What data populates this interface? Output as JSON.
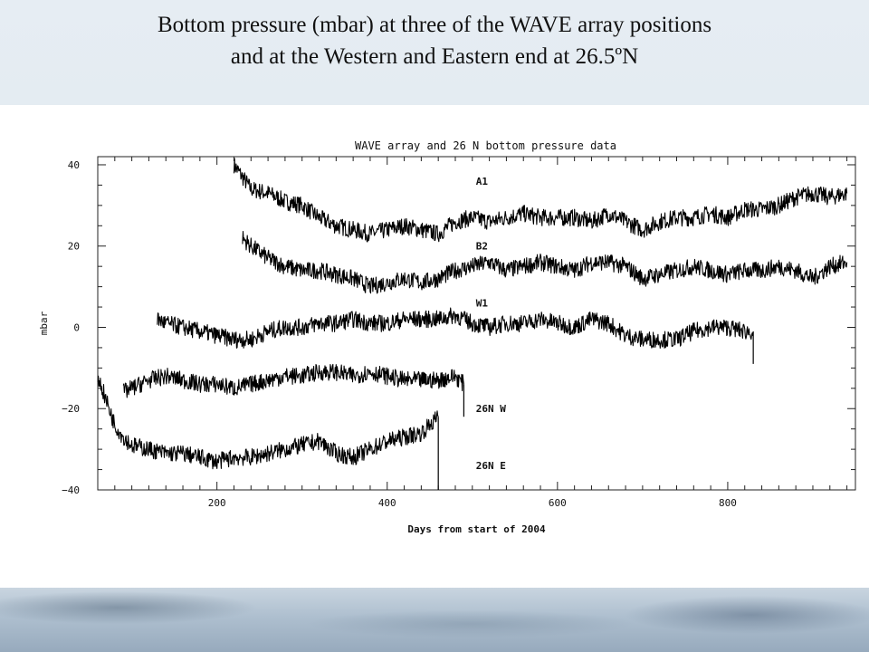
{
  "slide": {
    "title_line1": "Bottom pressure (mbar) at three of the WAVE array positions",
    "title_line2": "and at the Western and Eastern end at 26.5ºN"
  },
  "chart_data": {
    "type": "line",
    "title": "WAVE array and 26 N bottom pressure data",
    "xlabel": "Days from start of 2004",
    "ylabel": "mbar",
    "xlim": [
      60,
      950
    ],
    "ylim": [
      -40,
      42
    ],
    "x_ticks": [
      200,
      400,
      600,
      800
    ],
    "y_ticks": [
      40,
      20,
      0,
      -20,
      -40
    ],
    "x_tick_labels": [
      "200",
      "400",
      "600",
      "800"
    ],
    "y_tick_labels": [
      "40",
      "20",
      "0",
      "−20",
      "−40"
    ],
    "grid": false,
    "series": [
      {
        "name": "A1",
        "label_at": [
          500,
          36
        ],
        "points": [
          [
            220,
            40
          ],
          [
            240,
            34
          ],
          [
            260,
            33
          ],
          [
            280,
            31
          ],
          [
            300,
            30
          ],
          [
            320,
            27
          ],
          [
            340,
            25
          ],
          [
            360,
            24
          ],
          [
            380,
            23
          ],
          [
            400,
            24
          ],
          [
            420,
            25
          ],
          [
            440,
            24
          ],
          [
            460,
            23
          ],
          [
            480,
            26
          ],
          [
            500,
            27
          ],
          [
            520,
            26
          ],
          [
            540,
            27
          ],
          [
            560,
            28
          ],
          [
            580,
            27
          ],
          [
            600,
            27
          ],
          [
            620,
            27
          ],
          [
            640,
            26
          ],
          [
            660,
            28
          ],
          [
            680,
            26
          ],
          [
            700,
            24
          ],
          [
            720,
            26
          ],
          [
            740,
            27
          ],
          [
            760,
            27
          ],
          [
            780,
            28
          ],
          [
            800,
            27
          ],
          [
            820,
            29
          ],
          [
            840,
            29
          ],
          [
            860,
            30
          ],
          [
            880,
            32
          ],
          [
            900,
            33
          ],
          [
            920,
            32
          ],
          [
            940,
            33
          ]
        ]
      },
      {
        "name": "B2",
        "label_at": [
          500,
          20
        ],
        "points": [
          [
            230,
            22
          ],
          [
            240,
            20
          ],
          [
            260,
            17
          ],
          [
            280,
            15
          ],
          [
            300,
            14
          ],
          [
            320,
            14
          ],
          [
            340,
            13
          ],
          [
            360,
            12
          ],
          [
            380,
            10
          ],
          [
            400,
            11
          ],
          [
            420,
            12
          ],
          [
            440,
            11
          ],
          [
            460,
            12
          ],
          [
            480,
            14
          ],
          [
            500,
            15
          ],
          [
            520,
            16
          ],
          [
            540,
            14
          ],
          [
            560,
            15
          ],
          [
            580,
            16
          ],
          [
            600,
            15
          ],
          [
            620,
            14
          ],
          [
            640,
            16
          ],
          [
            660,
            16
          ],
          [
            680,
            15
          ],
          [
            700,
            12
          ],
          [
            720,
            13
          ],
          [
            740,
            14
          ],
          [
            760,
            15
          ],
          [
            780,
            14
          ],
          [
            800,
            13
          ],
          [
            820,
            14
          ],
          [
            840,
            14
          ],
          [
            860,
            15
          ],
          [
            880,
            14
          ],
          [
            900,
            12
          ],
          [
            920,
            15
          ],
          [
            940,
            16
          ]
        ]
      },
      {
        "name": "W1",
        "label_at": [
          500,
          6
        ],
        "points": [
          [
            130,
            2
          ],
          [
            140,
            1
          ],
          [
            160,
            0
          ],
          [
            180,
            -1
          ],
          [
            200,
            -2
          ],
          [
            220,
            -3
          ],
          [
            240,
            -3
          ],
          [
            260,
            -1
          ],
          [
            280,
            0
          ],
          [
            300,
            0
          ],
          [
            320,
            1
          ],
          [
            340,
            1
          ],
          [
            360,
            2
          ],
          [
            380,
            1
          ],
          [
            400,
            1
          ],
          [
            420,
            2
          ],
          [
            440,
            2
          ],
          [
            460,
            2
          ],
          [
            480,
            3
          ],
          [
            500,
            1
          ],
          [
            520,
            0
          ],
          [
            540,
            1
          ],
          [
            560,
            1
          ],
          [
            580,
            2
          ],
          [
            600,
            1
          ],
          [
            620,
            0
          ],
          [
            640,
            2
          ],
          [
            660,
            1
          ],
          [
            680,
            -2
          ],
          [
            700,
            -3
          ],
          [
            720,
            -3
          ],
          [
            740,
            -3
          ],
          [
            760,
            -1
          ],
          [
            780,
            0
          ],
          [
            800,
            0
          ],
          [
            820,
            -1
          ],
          [
            830,
            -1
          ]
        ]
      },
      {
        "name": "26N W",
        "label_at": [
          500,
          -20
        ],
        "points": [
          [
            90,
            -16
          ],
          [
            100,
            -15
          ],
          [
            120,
            -13
          ],
          [
            140,
            -12
          ],
          [
            160,
            -13
          ],
          [
            180,
            -14
          ],
          [
            200,
            -14
          ],
          [
            220,
            -15
          ],
          [
            240,
            -14
          ],
          [
            260,
            -13
          ],
          [
            280,
            -12
          ],
          [
            300,
            -12
          ],
          [
            320,
            -11
          ],
          [
            340,
            -11
          ],
          [
            360,
            -12
          ],
          [
            380,
            -11
          ],
          [
            400,
            -12
          ],
          [
            420,
            -13
          ],
          [
            440,
            -13
          ],
          [
            460,
            -13
          ],
          [
            480,
            -12
          ],
          [
            490,
            -14
          ]
        ]
      },
      {
        "name": "26N E",
        "label_at": [
          500,
          -34
        ],
        "points": [
          [
            60,
            -12
          ],
          [
            70,
            -18
          ],
          [
            80,
            -24
          ],
          [
            90,
            -27
          ],
          [
            100,
            -29
          ],
          [
            120,
            -30
          ],
          [
            140,
            -31
          ],
          [
            160,
            -31
          ],
          [
            180,
            -32
          ],
          [
            200,
            -33
          ],
          [
            220,
            -32
          ],
          [
            240,
            -32
          ],
          [
            260,
            -31
          ],
          [
            280,
            -30
          ],
          [
            300,
            -29
          ],
          [
            320,
            -28
          ],
          [
            340,
            -31
          ],
          [
            360,
            -32
          ],
          [
            380,
            -30
          ],
          [
            400,
            -28
          ],
          [
            420,
            -27
          ],
          [
            440,
            -26
          ],
          [
            460,
            -22
          ]
        ]
      }
    ]
  }
}
